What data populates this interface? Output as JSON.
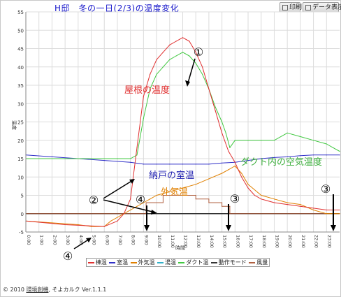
{
  "title": "H邸　冬の一日(2/3)の温度変化",
  "toolbar": {
    "print_label": "印刷",
    "data_label": "データ表示"
  },
  "footer": {
    "copyright": "© 2010 ",
    "company": "環境創機",
    "product": ", そよカルク Ver.1.1.1"
  },
  "legend": [
    {
      "name": "棟温",
      "color": "#e03030"
    },
    {
      "name": "室温",
      "color": "#3030c8"
    },
    {
      "name": "外気温",
      "color": "#e08000"
    },
    {
      "name": "湯温",
      "color": "#30b0c8"
    },
    {
      "name": "ダクト温",
      "color": "#40c840"
    },
    {
      "name": "動作モード",
      "color": "#333333"
    },
    {
      "name": "風量",
      "color": "#b06040"
    }
  ],
  "chart_data": {
    "type": "line",
    "title": "H邸　冬の一日(2/3)の温度変化",
    "xlabel": "時間",
    "ylabel": "温度",
    "xlim": [
      0,
      24
    ],
    "ylim": [
      -5,
      55
    ],
    "yticks": [
      -5,
      0,
      5,
      10,
      15,
      20,
      25,
      30,
      35,
      40,
      45,
      50,
      55
    ],
    "xticks": [
      "0:00",
      "1:00",
      "2:00",
      "3:00",
      "4:00",
      "5:00",
      "6:00",
      "7:00",
      "8:00",
      "9:00",
      "10:00",
      "11:00",
      "12:00",
      "13:00",
      "14:00",
      "15:00",
      "16:00",
      "17:00",
      "18:00",
      "19:00",
      "20:00",
      "21:00",
      "22:00",
      "23:00"
    ],
    "grid": true,
    "legend_position": "bottom",
    "series": [
      {
        "name": "棟温",
        "color": "#e03030",
        "x": [
          0,
          3,
          6,
          7,
          7.5,
          8,
          8.5,
          9,
          9.5,
          10,
          10.5,
          11,
          11.5,
          12,
          12.5,
          13,
          13.5,
          14,
          14.5,
          15,
          15.5,
          16,
          16.5,
          17,
          17.5,
          18,
          19,
          20,
          21,
          22,
          23,
          24
        ],
        "y": [
          -2,
          -3,
          -3.5,
          -2,
          0,
          4,
          18,
          32,
          38,
          42,
          44,
          46,
          47,
          48,
          47,
          44,
          40,
          34,
          28,
          22,
          17,
          14,
          10,
          7,
          5,
          4,
          3,
          2.5,
          2,
          1.5,
          1,
          1
        ]
      },
      {
        "name": "ダクト温",
        "color": "#40c840",
        "x": [
          0,
          3,
          7,
          8,
          8.5,
          9,
          9.5,
          10,
          10.5,
          11,
          11.5,
          12,
          12.5,
          13,
          13.5,
          14,
          14.5,
          15,
          15.3,
          15.6,
          16,
          17,
          18,
          19,
          20,
          21,
          22,
          23,
          23.5,
          24
        ],
        "y": [
          15,
          15,
          15,
          15,
          16,
          26,
          34,
          38,
          40,
          42,
          43,
          44,
          43,
          41,
          38,
          34,
          29,
          25,
          22,
          18,
          20,
          20,
          20,
          20,
          22,
          21,
          20,
          19,
          18,
          17
        ]
      },
      {
        "name": "室温",
        "color": "#3030c8",
        "x": [
          0,
          2,
          4,
          6,
          8,
          9,
          10,
          11,
          12,
          13,
          14,
          15,
          16,
          17,
          18,
          19,
          20,
          21,
          22,
          23,
          24
        ],
        "y": [
          16,
          15.5,
          15,
          14.5,
          14,
          13.5,
          13.5,
          13.5,
          13.5,
          13.5,
          13.5,
          13.8,
          14,
          14.5,
          15,
          15.3,
          15.5,
          15.8,
          16,
          16,
          16
        ]
      },
      {
        "name": "外気温",
        "color": "#e08000",
        "x": [
          0,
          2,
          4,
          5,
          6,
          6.5,
          7,
          7.5,
          8,
          8.5,
          9,
          9.5,
          10,
          10.5,
          11,
          11.5,
          12,
          13,
          14,
          15,
          15.5,
          16,
          16.5,
          17,
          18,
          19,
          20,
          21,
          22,
          23,
          24
        ],
        "y": [
          -2,
          -2.5,
          -3,
          -3.5,
          -3.5,
          -2,
          -1,
          0,
          1,
          2,
          3,
          4,
          5,
          5.5,
          6,
          6.5,
          7,
          8,
          9.5,
          11,
          12,
          13,
          11,
          8,
          5,
          4,
          3,
          2.5,
          1,
          0,
          0
        ]
      },
      {
        "name": "動作モード",
        "color": "#333333",
        "x": [
          0,
          9.2,
          9.2,
          15.6,
          15.6,
          24
        ],
        "y": [
          0,
          0,
          0,
          0,
          0,
          0
        ]
      },
      {
        "name": "風量",
        "color": "#b06040",
        "x": [
          0,
          9.2,
          9.2,
          10.5,
          10.5,
          13,
          13,
          14,
          14,
          15,
          15,
          15.6,
          15.6,
          24
        ],
        "y": [
          0,
          0,
          3,
          3,
          5,
          5,
          4,
          4,
          3,
          3,
          2,
          2,
          0,
          0
        ]
      }
    ],
    "annotations": [
      {
        "text": "屋根の温度",
        "color": "#e03030"
      },
      {
        "text": "ダクト内の空気温度",
        "color": "#40b040"
      },
      {
        "text": "納戸の室温",
        "color": "#2020b0"
      },
      {
        "text": "外気温",
        "color": "#e08000"
      },
      {
        "text": "①"
      },
      {
        "text": "②"
      },
      {
        "text": "③"
      },
      {
        "text": "③"
      },
      {
        "text": "④"
      },
      {
        "text": "④"
      }
    ]
  }
}
